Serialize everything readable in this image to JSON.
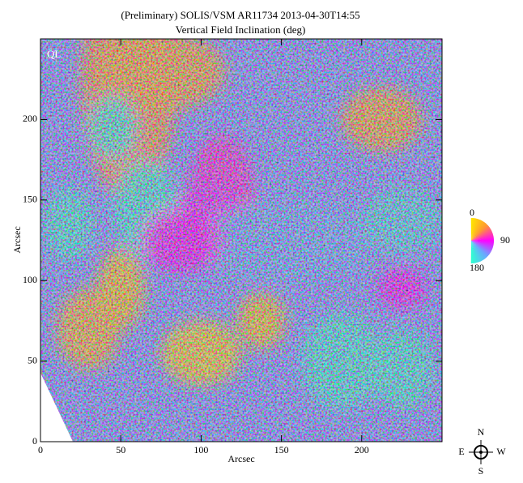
{
  "chart_data": {
    "type": "image",
    "title": "(Preliminary) SOLIS/VSM AR11734 2013-04-30T14:55",
    "subtitle": "Vertical Field Inclination (deg)",
    "xlabel": "Arcsec",
    "ylabel": "Arcsec",
    "corner_label": "QL",
    "xlim": [
      0,
      250
    ],
    "xticks": [
      0,
      50,
      100,
      150,
      200
    ],
    "ylim": [
      0,
      250
    ],
    "yticks": [
      0,
      50,
      100,
      150,
      200
    ],
    "colormap": [
      "#ffe600",
      "#ff9a30",
      "#ff00ff",
      "#6aa8ff",
      "#30ffd0"
    ],
    "colorbar": {
      "lim": [
        0,
        180
      ],
      "ticks": [
        0,
        90,
        180
      ]
    },
    "compass": {
      "north": "N",
      "south": "S",
      "east": "E",
      "west": "W"
    }
  }
}
